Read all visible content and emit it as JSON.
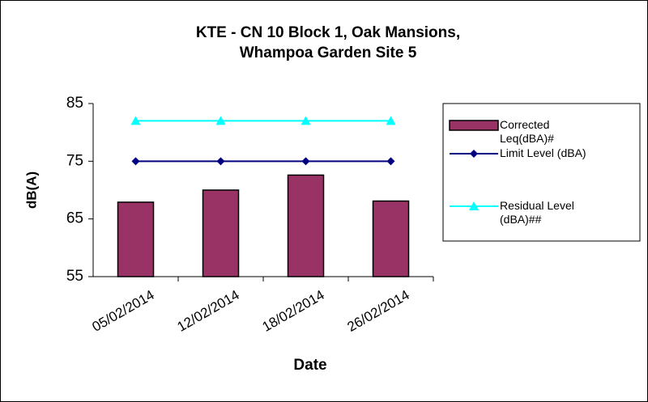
{
  "chart_data": {
    "type": "bar_line",
    "title": "KTE - CN 10 Block 1, Oak Mansions, Whampoa Garden Site 5",
    "x_label": "Date",
    "y_label": "dB(A)",
    "categories": [
      "05/02/2014",
      "12/02/2014",
      "18/02/2014",
      "26/02/2014"
    ],
    "series": [
      {
        "name": "Corrected Leq(dBA)#",
        "type": "bar",
        "color": "#993366",
        "values": [
          67.9,
          70.0,
          72.6,
          68.1
        ]
      },
      {
        "name": "Limit Level (dBA)",
        "type": "line",
        "marker": "diamond",
        "color": "#000080",
        "values": [
          75,
          75,
          75,
          75
        ]
      },
      {
        "name": "Residual Level (dBA)##",
        "type": "line",
        "marker": "triangle",
        "color": "#00FFFF",
        "values": [
          82,
          82,
          82,
          82
        ]
      }
    ],
    "ylim": [
      55,
      85
    ],
    "yticks": [
      55,
      65,
      75,
      85
    ],
    "legend": "right"
  }
}
